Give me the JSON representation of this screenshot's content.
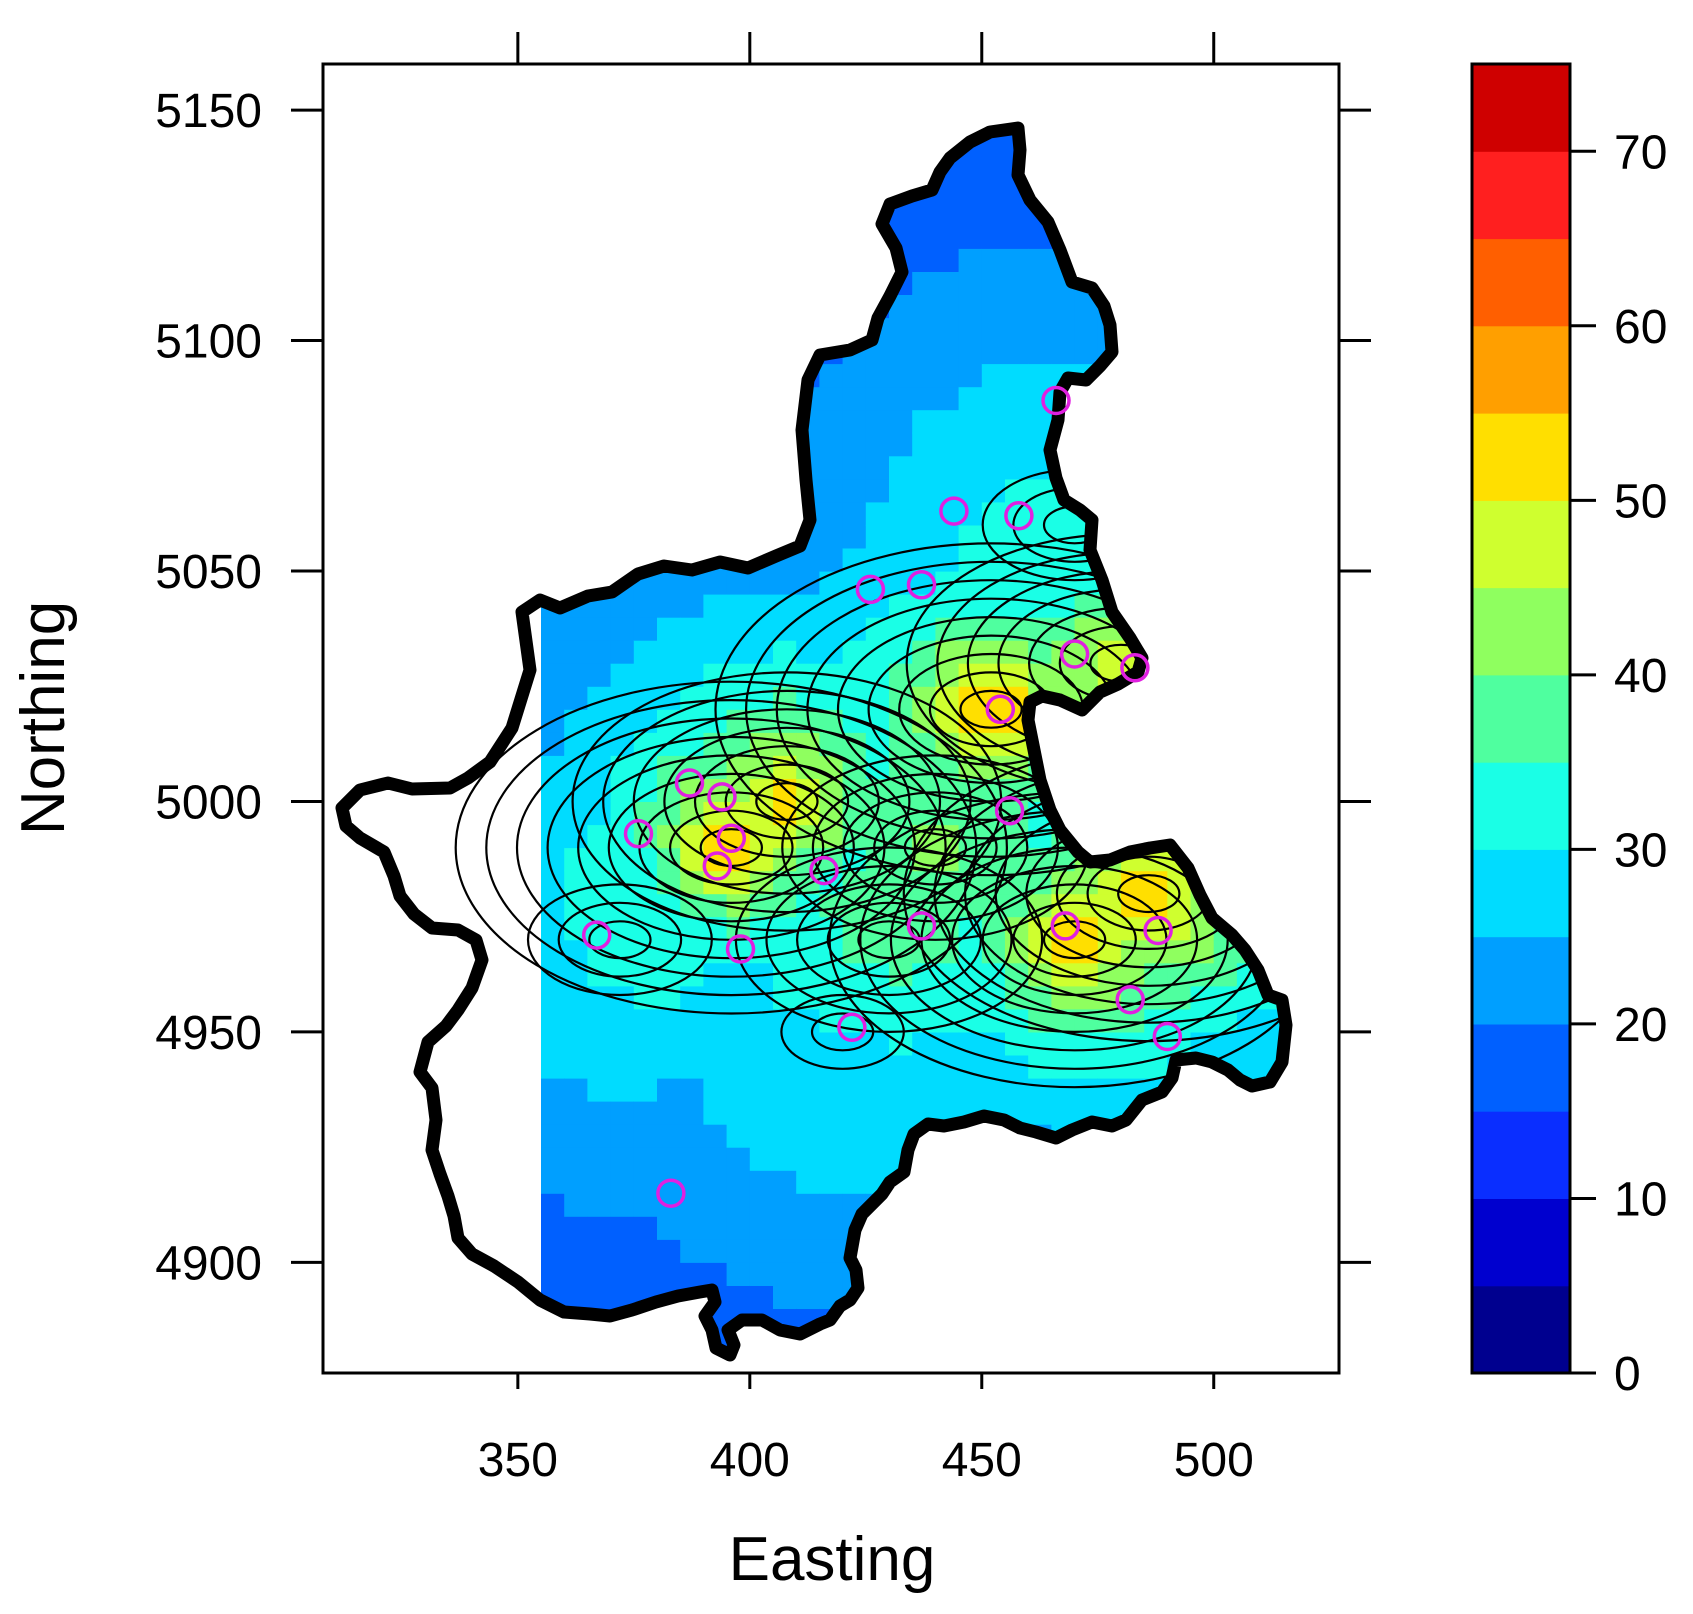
{
  "chart_data": {
    "type": "heatmap",
    "xlabel": "Easting",
    "ylabel": "Northing",
    "xlim": [
      308,
      527
    ],
    "ylim": [
      4876,
      5160
    ],
    "x_ticks": [
      350,
      400,
      450,
      500
    ],
    "y_ticks": [
      4900,
      4950,
      5000,
      5050,
      5100,
      5150
    ],
    "x_tick_labels": [
      "350",
      "400",
      "450",
      "500"
    ],
    "y_tick_labels": [
      "4900",
      "4950",
      "5000",
      "5050",
      "5100",
      "5150"
    ],
    "colorbar": {
      "range": [
        0,
        75
      ],
      "breaks": [
        0,
        5,
        10,
        15,
        20,
        25,
        30,
        35,
        40,
        45,
        50,
        55,
        60,
        65,
        70,
        75
      ],
      "colors": [
        "#00008f",
        "#0000cf",
        "#0a2eff",
        "#0060ff",
        "#009fff",
        "#00dcff",
        "#1affe6",
        "#4fff9f",
        "#8fff5f",
        "#cfff2f",
        "#ffdf00",
        "#ff9f00",
        "#ff5f00",
        "#ff1f1f",
        "#cf0000",
        "#800000"
      ],
      "ticks": [
        0,
        10,
        20,
        30,
        40,
        50,
        60,
        70
      ],
      "tick_labels": [
        "0",
        "10",
        "20",
        "30",
        "40",
        "50",
        "60",
        "70"
      ]
    },
    "grid": false,
    "contour_lines": true,
    "hotspots": [
      {
        "x": 452,
        "y": 5020,
        "value": 60
      },
      {
        "x": 396,
        "y": 4990,
        "value": 60
      },
      {
        "x": 486,
        "y": 4980,
        "value": 57
      },
      {
        "x": 408,
        "y": 5000,
        "value": 53
      },
      {
        "x": 480,
        "y": 5030,
        "value": 52
      },
      {
        "x": 470,
        "y": 4970,
        "value": 55
      },
      {
        "x": 440,
        "y": 4990,
        "value": 40
      },
      {
        "x": 430,
        "y": 4970,
        "value": 40
      },
      {
        "x": 372,
        "y": 4970,
        "value": 30
      },
      {
        "x": 420,
        "y": 4950,
        "value": 27
      },
      {
        "x": 470,
        "y": 5060,
        "value": 30
      }
    ],
    "stations": [
      {
        "x": 466,
        "y": 5087
      },
      {
        "x": 444,
        "y": 5063
      },
      {
        "x": 458,
        "y": 5062
      },
      {
        "x": 426,
        "y": 5046
      },
      {
        "x": 437,
        "y": 5047
      },
      {
        "x": 470,
        "y": 5032
      },
      {
        "x": 483,
        "y": 5029
      },
      {
        "x": 454,
        "y": 5020
      },
      {
        "x": 387,
        "y": 5004
      },
      {
        "x": 394,
        "y": 5001
      },
      {
        "x": 456,
        "y": 4998
      },
      {
        "x": 376,
        "y": 4993
      },
      {
        "x": 396,
        "y": 4992
      },
      {
        "x": 393,
        "y": 4986
      },
      {
        "x": 416,
        "y": 4985
      },
      {
        "x": 437,
        "y": 4973
      },
      {
        "x": 468,
        "y": 4973
      },
      {
        "x": 488,
        "y": 4972
      },
      {
        "x": 367,
        "y": 4971
      },
      {
        "x": 398,
        "y": 4968
      },
      {
        "x": 482,
        "y": 4957
      },
      {
        "x": 422,
        "y": 4951
      },
      {
        "x": 490,
        "y": 4949
      },
      {
        "x": 383,
        "y": 4915
      }
    ]
  }
}
